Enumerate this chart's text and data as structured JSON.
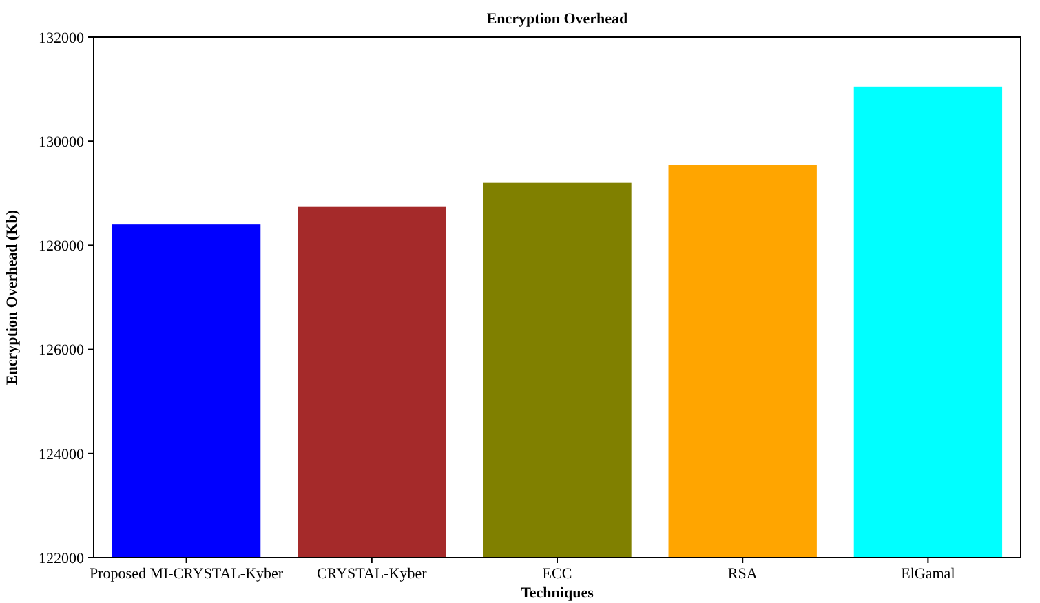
{
  "chart_data": {
    "type": "bar",
    "title": "Encryption Overhead",
    "xlabel": "Techniques",
    "ylabel": "Encryption Overhead (Kb)",
    "categories": [
      "Proposed MI-CRYSTAL-Kyber",
      "CRYSTAL-Kyber",
      "ECC",
      "RSA",
      "ElGamal"
    ],
    "values": [
      128400,
      128750,
      129200,
      129550,
      131050
    ],
    "colors": [
      "#0000ff",
      "#a52a2a",
      "#808000",
      "#ffa500",
      "#00ffff"
    ],
    "ylim": [
      122000,
      132000
    ],
    "yticks": [
      122000,
      124000,
      126000,
      128000,
      130000,
      132000
    ]
  }
}
